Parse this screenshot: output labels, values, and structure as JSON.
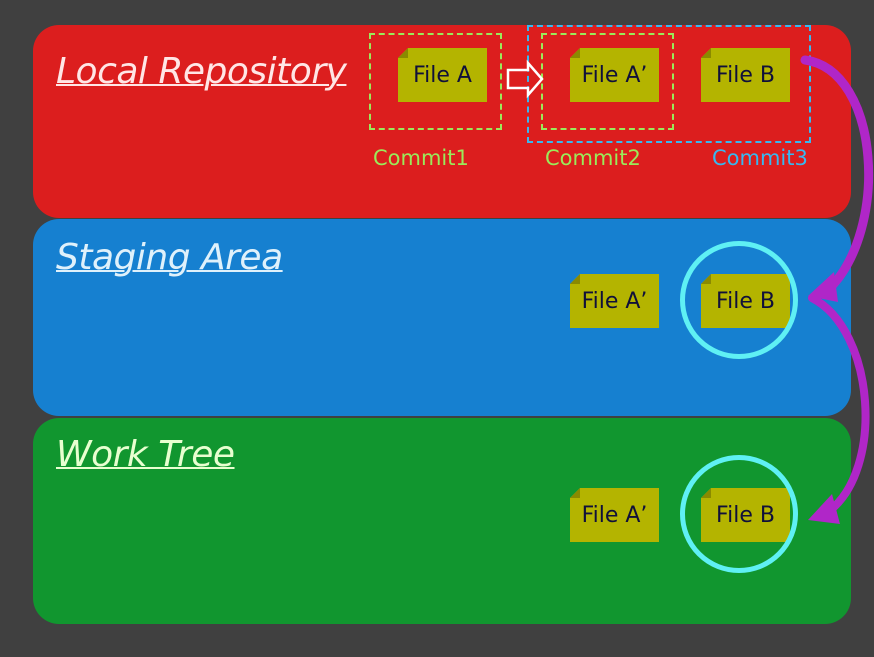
{
  "local": {
    "title": "Local Repository",
    "files": [
      "File A",
      "File A’",
      "File B"
    ],
    "commits": [
      "Commit1",
      "Commit2",
      "Commit3"
    ]
  },
  "staging": {
    "title": "Staging Area",
    "files": [
      "File A’",
      "File B"
    ]
  },
  "work": {
    "title": "Work Tree",
    "files": [
      "File A’",
      "File B"
    ]
  },
  "colors": {
    "local_bg": "#dc1e1e",
    "staging_bg": "#1680d0",
    "work_bg": "#11962f",
    "file_bg": "#b4b400",
    "commit1_outline": "#9bea5a",
    "commit2_outline": "#9bea5a",
    "commit3_outline": "#38b8f0",
    "highlight_ring": "#5ff0f4",
    "arrow": "#b026c8"
  }
}
